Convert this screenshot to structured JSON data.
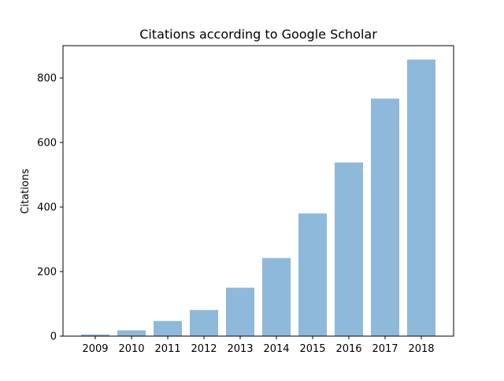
{
  "chart_data": {
    "type": "bar",
    "title": "Citations according to Google Scholar",
    "xlabel": "",
    "ylabel": "Citations",
    "categories": [
      "2009",
      "2010",
      "2011",
      "2012",
      "2013",
      "2014",
      "2015",
      "2016",
      "2017",
      "2018"
    ],
    "values": [
      5,
      18,
      47,
      81,
      150,
      242,
      380,
      538,
      736,
      857
    ],
    "ylim": [
      0,
      900
    ],
    "yticks": [
      0,
      200,
      400,
      600,
      800
    ],
    "grid": false,
    "bar_color": "#8fb9da",
    "legend": "none"
  }
}
